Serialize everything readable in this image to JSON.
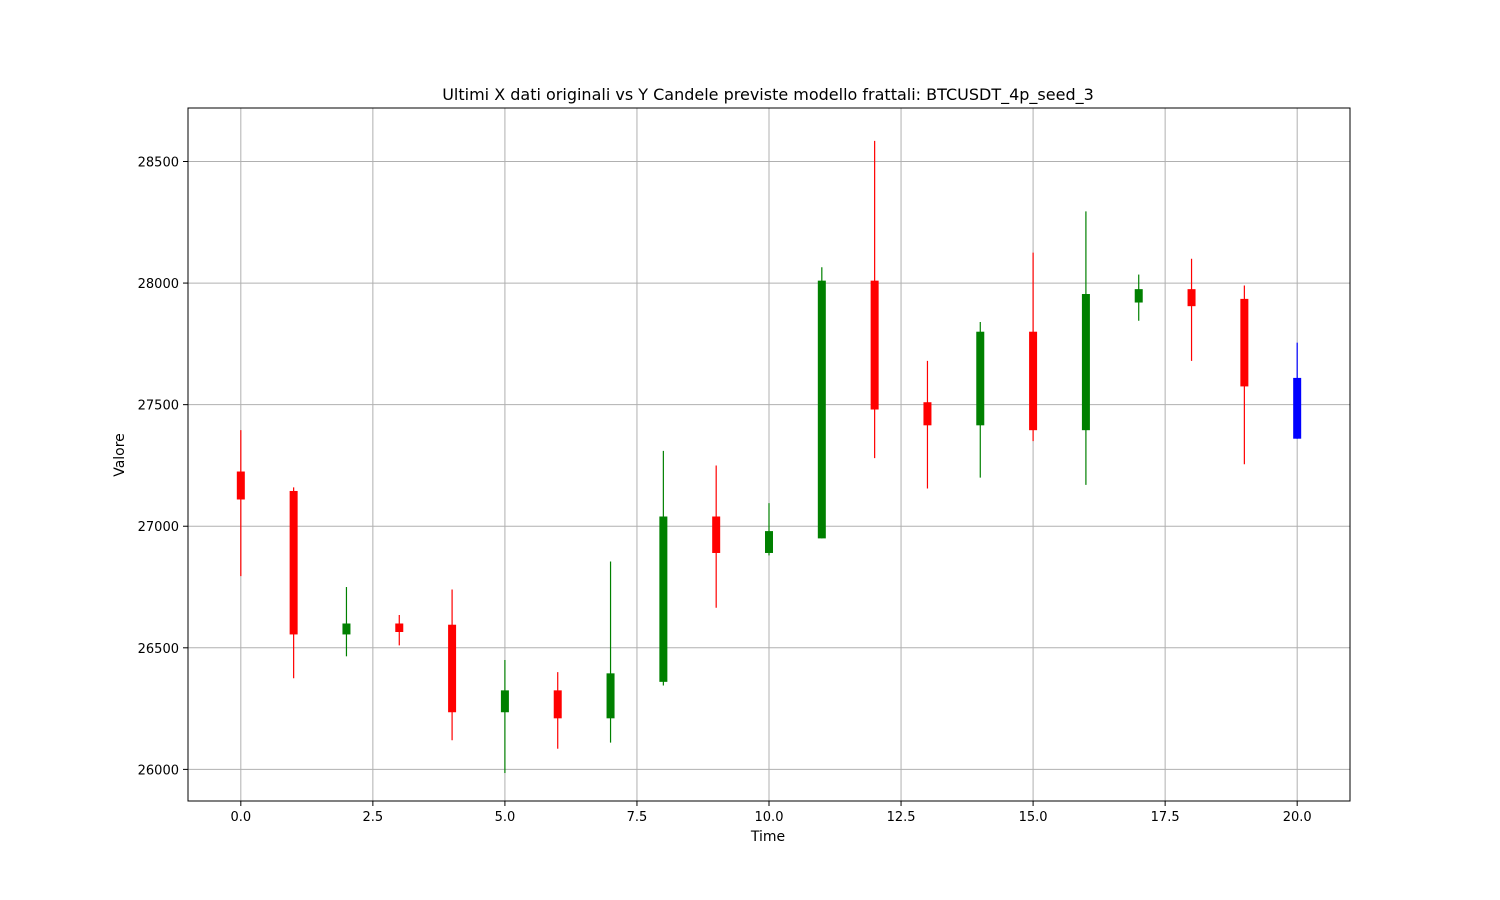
{
  "chart_data": {
    "type": "candlestick",
    "title": "Ultimi X dati originali vs Y Candele previste modello frattali: BTCUSDT_4p_seed_3",
    "xlabel": "Time",
    "ylabel": "Valore",
    "xlim": [
      -1,
      21
    ],
    "ylim": [
      25870,
      28720
    ],
    "xticks": [
      0.0,
      2.5,
      5.0,
      7.5,
      10.0,
      12.5,
      15.0,
      17.5,
      20.0
    ],
    "xtick_labels": [
      "0.0",
      "2.5",
      "5.0",
      "7.5",
      "10.0",
      "12.5",
      "15.0",
      "17.5",
      "20.0"
    ],
    "yticks": [
      26000,
      26500,
      27000,
      27500,
      28000,
      28500
    ],
    "ytick_labels": [
      "26000",
      "26500",
      "27000",
      "27500",
      "28000",
      "28500"
    ],
    "grid": true,
    "colors": {
      "up": "#008000",
      "down": "#ff0000",
      "predicted": "#0000ff"
    },
    "candles": [
      {
        "t": 0,
        "open": 27225,
        "high": 27395,
        "low": 26795,
        "close": 27110,
        "kind": "down"
      },
      {
        "t": 1,
        "open": 27145,
        "high": 27160,
        "low": 26375,
        "close": 26555,
        "kind": "down"
      },
      {
        "t": 2,
        "open": 26555,
        "high": 26750,
        "low": 26465,
        "close": 26600,
        "kind": "up"
      },
      {
        "t": 3,
        "open": 26600,
        "high": 26635,
        "low": 26510,
        "close": 26565,
        "kind": "down"
      },
      {
        "t": 4,
        "open": 26595,
        "high": 26740,
        "low": 26120,
        "close": 26235,
        "kind": "down"
      },
      {
        "t": 5,
        "open": 26235,
        "high": 26450,
        "low": 25985,
        "close": 26325,
        "kind": "up"
      },
      {
        "t": 6,
        "open": 26325,
        "high": 26400,
        "low": 26085,
        "close": 26210,
        "kind": "down"
      },
      {
        "t": 7,
        "open": 26210,
        "high": 26855,
        "low": 26110,
        "close": 26395,
        "kind": "up"
      },
      {
        "t": 8,
        "open": 26360,
        "high": 27310,
        "low": 26345,
        "close": 27040,
        "kind": "up"
      },
      {
        "t": 9,
        "open": 27040,
        "high": 27250,
        "low": 26665,
        "close": 26890,
        "kind": "down"
      },
      {
        "t": 10,
        "open": 26890,
        "high": 27095,
        "low": 26880,
        "close": 26980,
        "kind": "up"
      },
      {
        "t": 11,
        "open": 26950,
        "high": 28065,
        "low": 26950,
        "close": 28010,
        "kind": "up"
      },
      {
        "t": 12,
        "open": 28010,
        "high": 28585,
        "low": 27280,
        "close": 27480,
        "kind": "down"
      },
      {
        "t": 13,
        "open": 27510,
        "high": 27680,
        "low": 27155,
        "close": 27415,
        "kind": "down"
      },
      {
        "t": 14,
        "open": 27415,
        "high": 27840,
        "low": 27200,
        "close": 27800,
        "kind": "up"
      },
      {
        "t": 15,
        "open": 27800,
        "high": 28125,
        "low": 27350,
        "close": 27395,
        "kind": "down"
      },
      {
        "t": 16,
        "open": 27395,
        "high": 28295,
        "low": 27170,
        "close": 27955,
        "kind": "up"
      },
      {
        "t": 17,
        "open": 27920,
        "high": 28035,
        "low": 27845,
        "close": 27975,
        "kind": "up"
      },
      {
        "t": 18,
        "open": 27975,
        "high": 28100,
        "low": 27680,
        "close": 27905,
        "kind": "down"
      },
      {
        "t": 19,
        "open": 27935,
        "high": 27990,
        "low": 27255,
        "close": 27575,
        "kind": "down"
      },
      {
        "t": 20,
        "open": 27360,
        "high": 27755,
        "low": 27360,
        "close": 27610,
        "kind": "predicted"
      }
    ]
  }
}
